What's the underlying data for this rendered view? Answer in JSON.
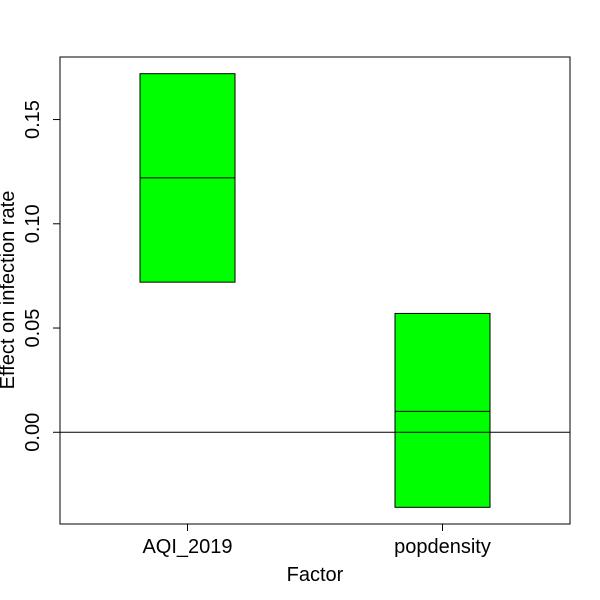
{
  "chart_data": {
    "type": "box",
    "xlabel": "Factor",
    "ylabel": "Effect on infection rate",
    "categories": [
      "AQI_2019",
      "popdensity"
    ],
    "boxes": [
      {
        "category": "AQI_2019",
        "low": 0.072,
        "median": 0.122,
        "high": 0.172
      },
      {
        "category": "popdensity",
        "low": -0.036,
        "median": 0.01,
        "high": 0.057
      }
    ],
    "ylim": [
      -0.044,
      0.18
    ],
    "yticks": [
      0.0,
      0.05,
      0.1,
      0.15
    ],
    "ytick_labels": [
      "0.00",
      "0.05",
      "0.10",
      "0.15"
    ],
    "reference_line": 0,
    "box_color": "#00FF00",
    "grid": false
  }
}
